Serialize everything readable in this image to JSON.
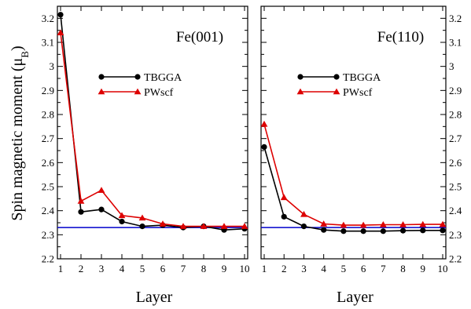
{
  "chart_data": [
    {
      "type": "line",
      "title": "Fe(001)",
      "xlabel": "Layer",
      "ylabel": "Spin magnetic moment (μ",
      "ylabel_sub": "B",
      "ylabel_close": ")",
      "xlim": [
        1,
        10
      ],
      "ylim": [
        2.2,
        3.25
      ],
      "x_ticks": [
        1,
        2,
        3,
        4,
        5,
        6,
        7,
        8,
        9,
        10
      ],
      "y_ticks": [
        "2.2",
        "2.3",
        "2.4",
        "2.5",
        "2.6",
        "2.7",
        "2.8",
        "2.9",
        "3",
        "3.1",
        "3.2"
      ],
      "reference_line": {
        "y": 2.33,
        "color": "#0000cc"
      },
      "legend_position": "center-right",
      "series": [
        {
          "name": "TBGGA",
          "color": "#000000",
          "marker": "circle",
          "x": [
            1,
            2,
            3,
            4,
            5,
            6,
            7,
            8,
            9,
            10
          ],
          "y": [
            3.215,
            2.395,
            2.405,
            2.355,
            2.335,
            2.34,
            2.33,
            2.335,
            2.32,
            2.325
          ]
        },
        {
          "name": "PWscf",
          "color": "#dd0000",
          "marker": "triangle",
          "x": [
            1,
            2,
            3,
            4,
            5,
            6,
            7,
            8,
            9,
            10
          ],
          "y": [
            3.14,
            2.44,
            2.485,
            2.38,
            2.37,
            2.345,
            2.335,
            2.335,
            2.335,
            2.335
          ]
        }
      ]
    },
    {
      "type": "line",
      "title": "Fe(110)",
      "xlabel": "Layer",
      "xlim": [
        1,
        10
      ],
      "ylim": [
        2.2,
        3.25
      ],
      "x_ticks": [
        1,
        2,
        3,
        4,
        5,
        6,
        7,
        8,
        9,
        10
      ],
      "y_ticks": [
        "2.2",
        "2.3",
        "2.4",
        "2.5",
        "2.6",
        "2.7",
        "2.8",
        "2.9",
        "3",
        "3.1",
        "3.2"
      ],
      "reference_line": {
        "y": 2.33,
        "color": "#0000cc"
      },
      "legend_position": "center-right",
      "series": [
        {
          "name": "TBGGA",
          "color": "#000000",
          "marker": "circle",
          "x": [
            1,
            2,
            3,
            4,
            5,
            6,
            7,
            8,
            9,
            10
          ],
          "y": [
            2.665,
            2.375,
            2.335,
            2.32,
            2.315,
            2.315,
            2.315,
            2.317,
            2.318,
            2.318
          ]
        },
        {
          "name": "PWscf",
          "color": "#dd0000",
          "marker": "triangle",
          "x": [
            1,
            2,
            3,
            4,
            5,
            6,
            7,
            8,
            9,
            10
          ],
          "y": [
            2.76,
            2.455,
            2.385,
            2.345,
            2.34,
            2.34,
            2.342,
            2.342,
            2.343,
            2.343
          ]
        }
      ]
    }
  ]
}
